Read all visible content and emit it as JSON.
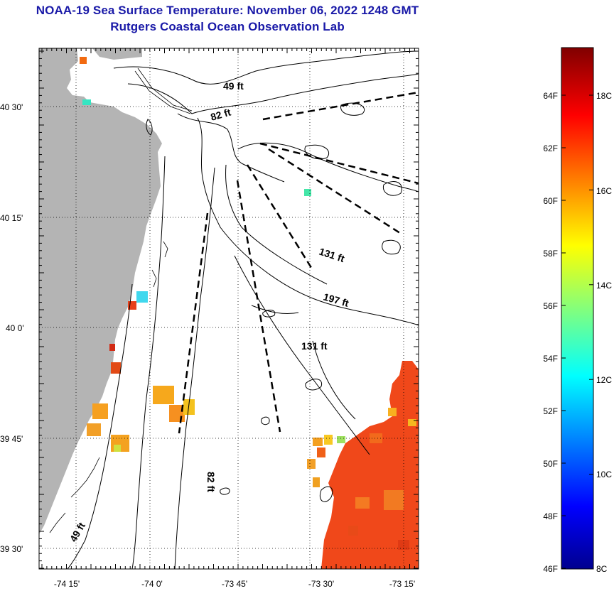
{
  "title": {
    "line1": "NOAA-19 Sea Surface Temperature:  November 06, 2022 1248 GMT",
    "line2": "Rutgers Coastal Ocean Observation Lab"
  },
  "map": {
    "lat_labels": [
      "40 30'",
      "40 15'",
      "40 0'",
      "39 45'",
      "39 30'"
    ],
    "lon_labels": [
      "-74 15'",
      "-74 0'",
      "-73 45'",
      "-73 30'",
      "-73 15'"
    ],
    "depth_labels": [
      "49 ft",
      "82 ft",
      "131 ft",
      "197 ft",
      "131 ft",
      "82 ft",
      "49 ft"
    ],
    "land_color": "#b4b4b4",
    "contour_color": "#000000"
  },
  "colorbar": {
    "f_labels": [
      "64F",
      "62F",
      "60F",
      "58F",
      "56F",
      "54F",
      "52F",
      "50F",
      "48F",
      "46F"
    ],
    "c_labels": [
      "18C",
      "16C",
      "14C",
      "12C",
      "10C",
      "8C"
    ],
    "range_c": [
      8,
      19
    ],
    "colors": [
      "#00008f",
      "#0000ff",
      "#00ffff",
      "#ffff00",
      "#ff0000",
      "#800000"
    ]
  }
}
